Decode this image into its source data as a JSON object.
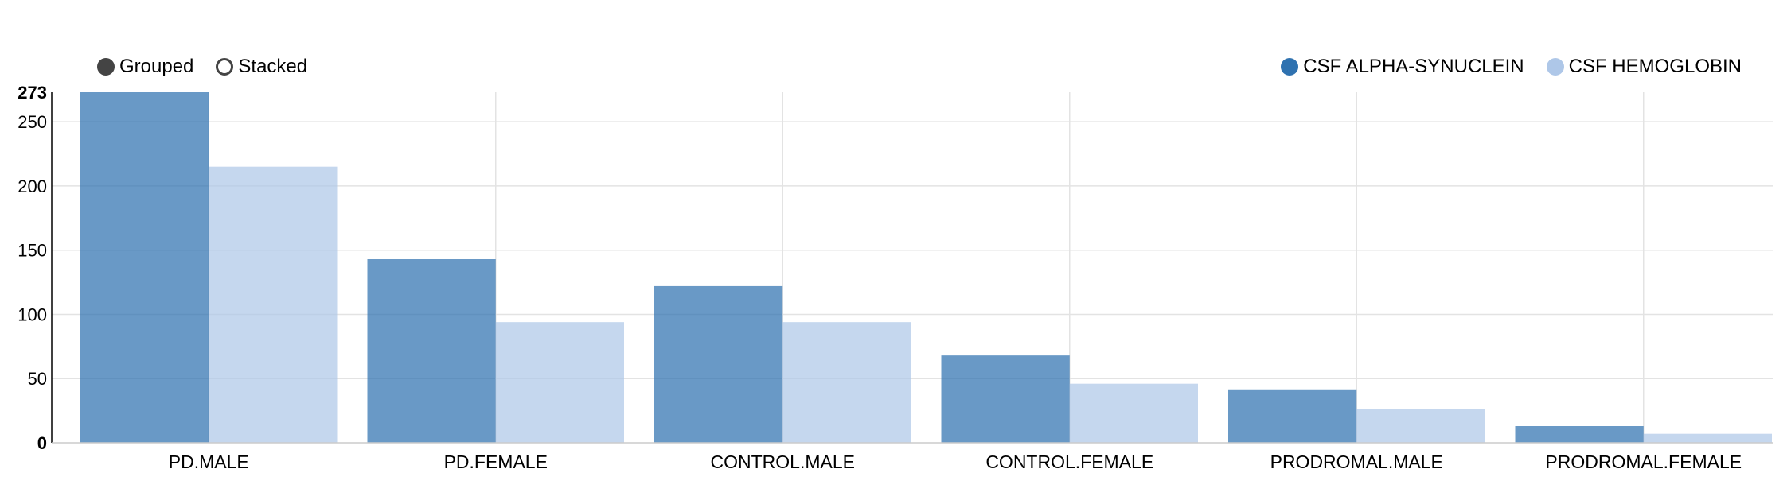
{
  "controls": [
    {
      "label": "Grouped",
      "selected": true
    },
    {
      "label": "Stacked",
      "selected": false
    }
  ],
  "chart_data": {
    "type": "bar",
    "categories": [
      "PD.MALE",
      "PD.FEMALE",
      "CONTROL.MALE",
      "CONTROL.FEMALE",
      "PRODROMAL.MALE",
      "PRODROMAL.FEMALE"
    ],
    "series": [
      {
        "name": "CSF ALPHA-SYNUCLEIN",
        "color": "#2f72b0",
        "values": [
          273,
          143,
          122,
          68,
          41,
          13
        ]
      },
      {
        "name": "CSF HEMOGLOBIN",
        "color": "#aec7e8",
        "values": [
          215,
          94,
          94,
          46,
          26,
          7
        ]
      }
    ],
    "ylim": [
      0,
      273
    ],
    "yticks": [
      0,
      50,
      100,
      150,
      200,
      250,
      273
    ],
    "grid": true,
    "legend_position": "top-right",
    "mode": "grouped"
  }
}
